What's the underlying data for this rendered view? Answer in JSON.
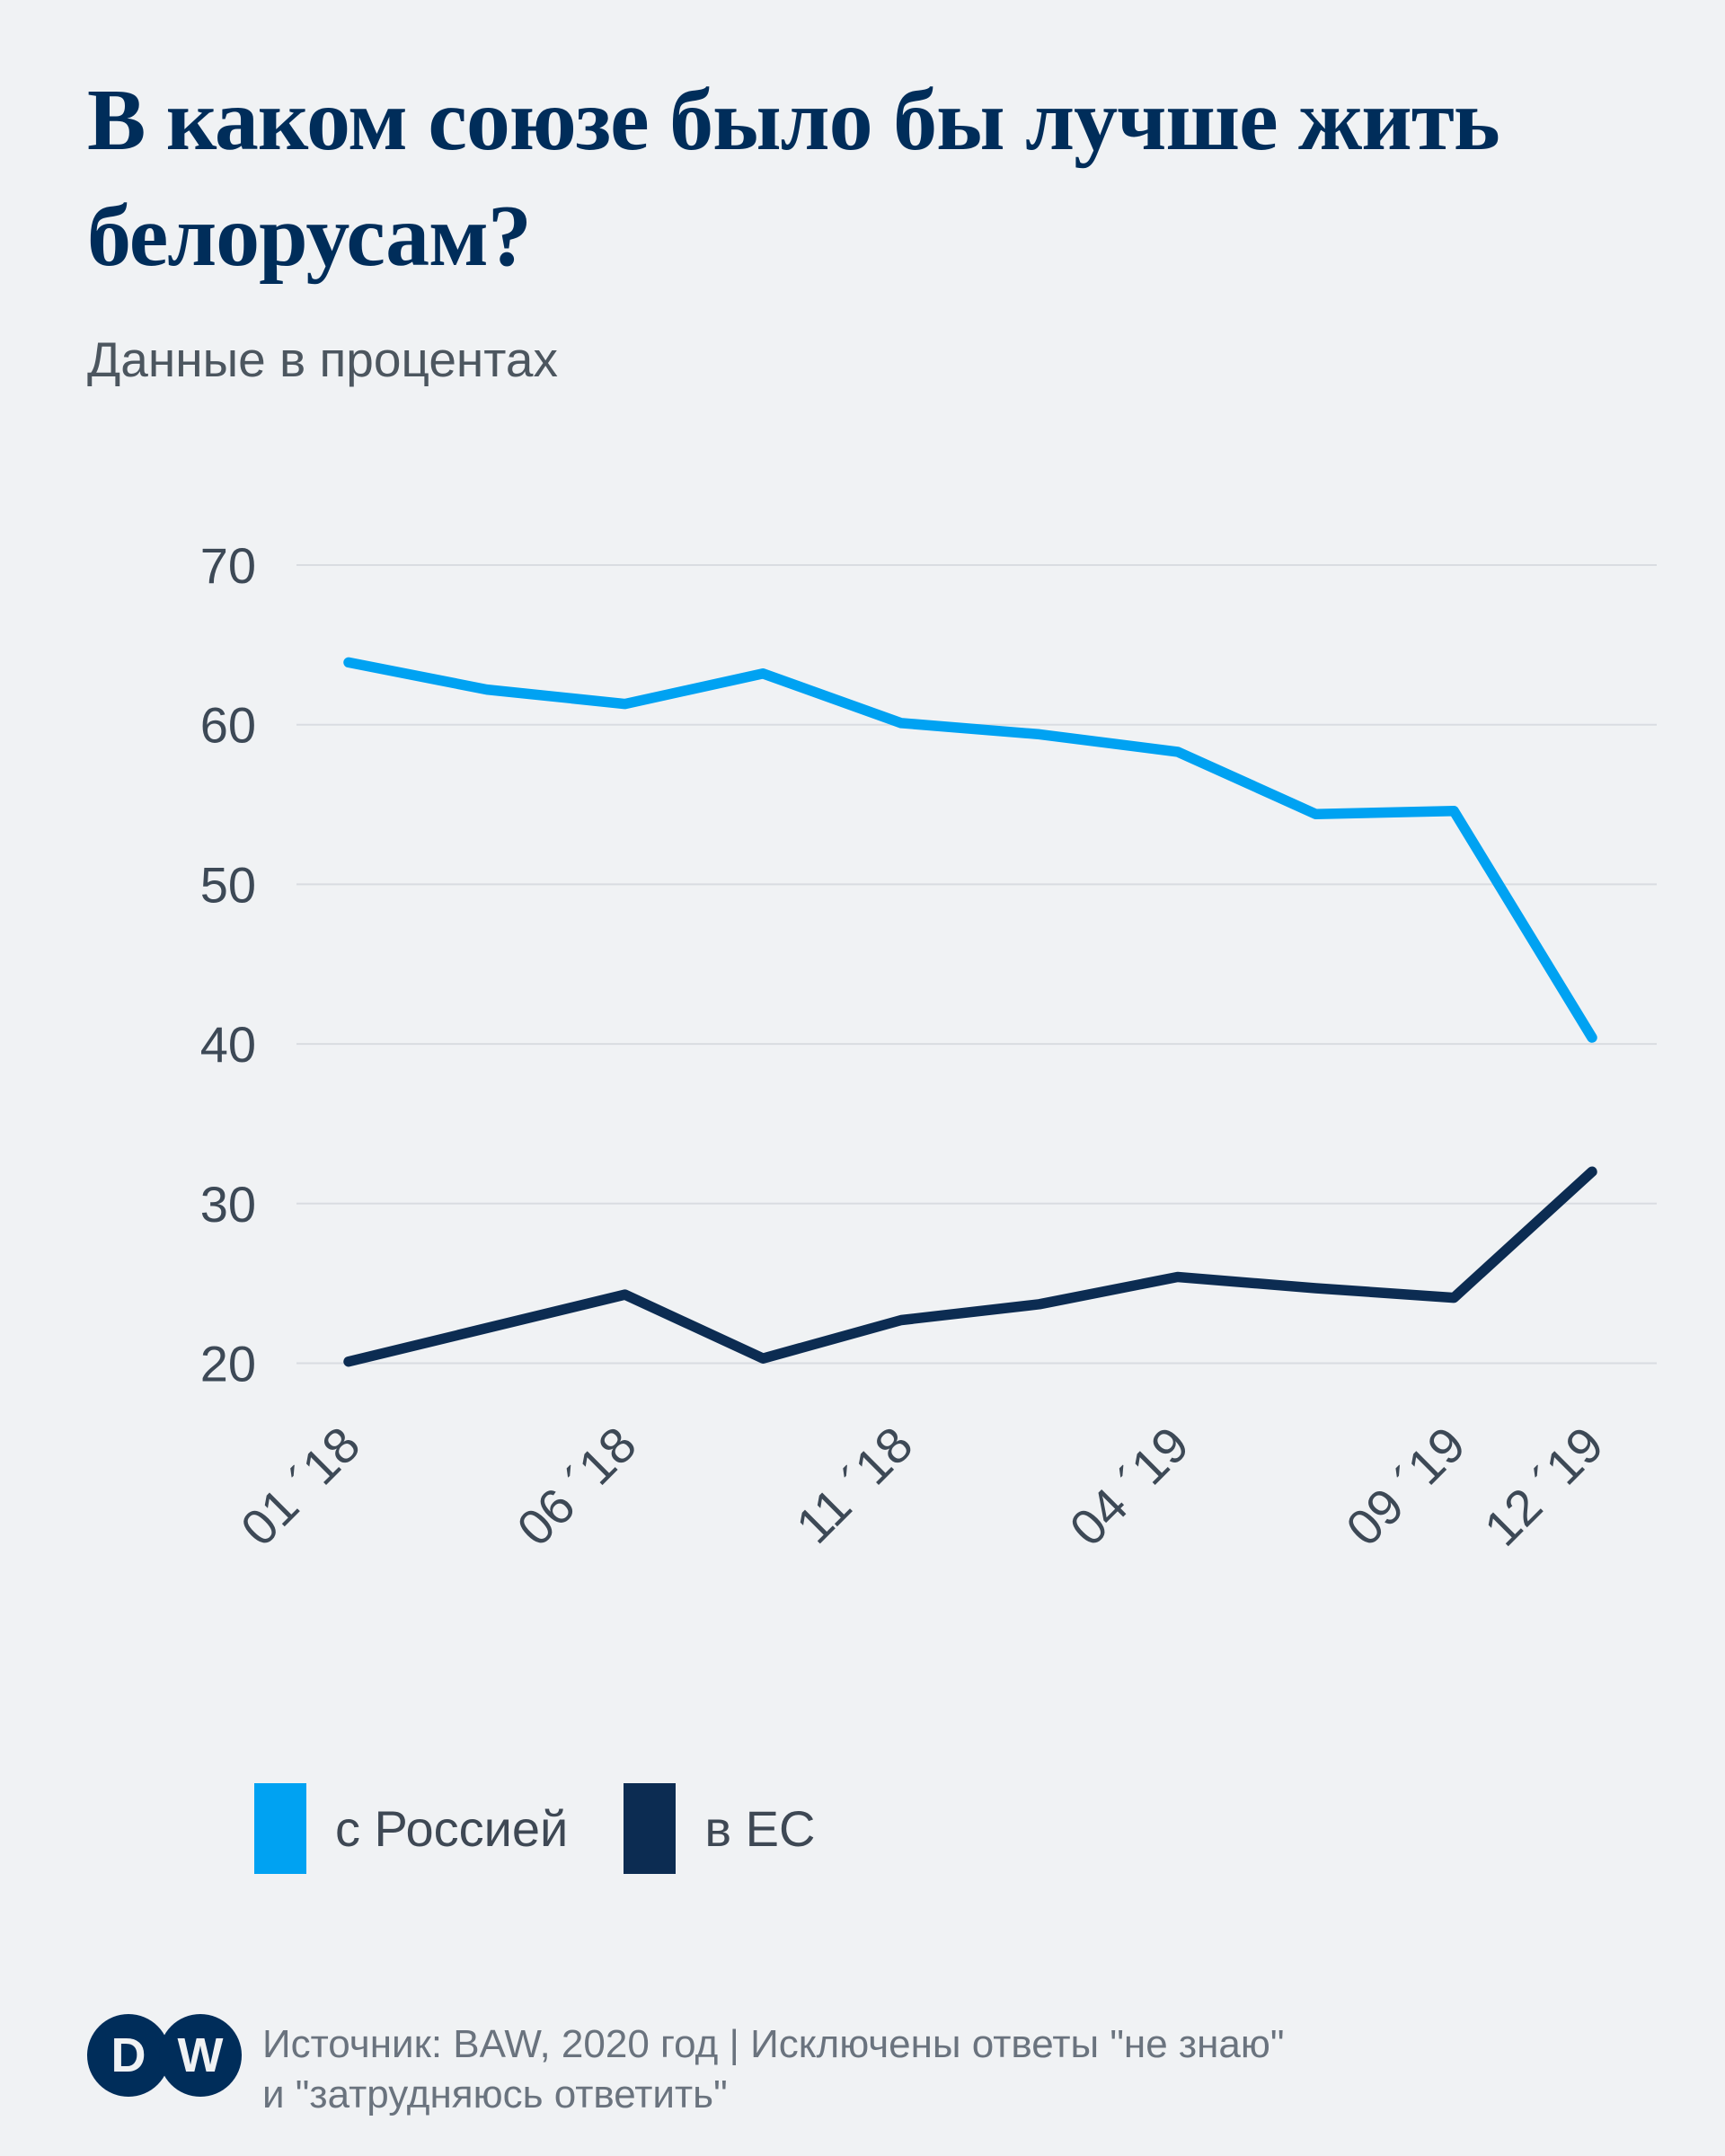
{
  "title": "В каком союзе было бы лучше жить белорусам?",
  "subtitle": "Данные в процентах",
  "legend": [
    {
      "label": "с Россией",
      "color": "#00a2f2"
    },
    {
      "label": "в ЕС",
      "color": "#0c2c52"
    }
  ],
  "source_line1": "Источник: BAW, 2020 год | Исключены ответы \"не знаю\"",
  "source_line2": "и \"затрудняюсь ответить\"",
  "logo": {
    "left_letter": "D",
    "right_letter": "W",
    "color": "#002d5a"
  },
  "colors": {
    "background": "#f0f2f4",
    "gridline": "#d9dce1",
    "axis_label": "#3d4956",
    "title": "#002d5a"
  },
  "chart_data": {
    "type": "line",
    "title": "В каком союзе было бы лучше жить белорусам?",
    "subtitle_unit": "проценты",
    "grid": "horizontal",
    "legend_position": "bottom",
    "y_ticks": [
      70,
      60,
      50,
      40,
      30,
      20
    ],
    "ylim": [
      20,
      70
    ],
    "x_tick_labels": [
      "01 ´18",
      "06 ´18",
      "11 ´18",
      "04 ´19",
      "09 ´19",
      "12 ´19"
    ],
    "x_tick_point_index": [
      0,
      2,
      4,
      6,
      8,
      9
    ],
    "n_points": 10,
    "series": [
      {
        "name": "с Россией",
        "color": "#00a2f2",
        "values": [
          63.9,
          62.2,
          61.3,
          63.2,
          60.1,
          59.4,
          58.3,
          54.4,
          54.6,
          40.4
        ]
      },
      {
        "name": "в ЕС",
        "color": "#0c2c52",
        "values": [
          20.1,
          22.2,
          24.3,
          20.3,
          22.7,
          23.7,
          25.4,
          24.7,
          24.1,
          32.0
        ]
      }
    ]
  }
}
